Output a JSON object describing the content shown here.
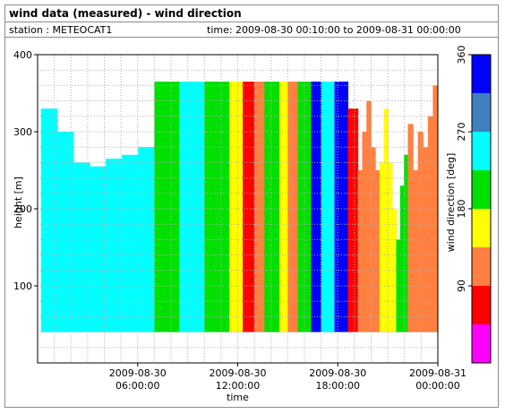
{
  "header": {
    "title": "wind data (measured) - wind direction",
    "station": "station : METEOCAT1",
    "time_range": "time: 2009-08-30 00:10:00 to 2009-08-31 00:00:00"
  },
  "chart_data": {
    "type": "heatmap",
    "title": "wind data (measured) - wind direction",
    "xlabel": "time",
    "ylabel": "height [m]",
    "colorbar_label": "wind direction [deg]",
    "xlim_hours": [
      0,
      24
    ],
    "ylim": [
      0,
      400
    ],
    "yticks": [
      100,
      200,
      300,
      400
    ],
    "xticks": [
      {
        "hour": 6,
        "line1": "2009-08-30",
        "line2": "06:00:00"
      },
      {
        "hour": 12,
        "line1": "2009-08-30",
        "line2": "12:00:00"
      },
      {
        "hour": 18,
        "line1": "2009-08-30",
        "line2": "18:00:00"
      },
      {
        "hour": 24,
        "line1": "2009-08-31",
        "line2": "00:00:00"
      }
    ],
    "colorbar": {
      "range": [
        0,
        360
      ],
      "ticks": [
        90,
        180,
        270,
        360
      ],
      "bands": [
        {
          "from": 0,
          "to": 45,
          "color": "#ff00ff"
        },
        {
          "from": 45,
          "to": 90,
          "color": "#ff0000"
        },
        {
          "from": 90,
          "to": 135,
          "color": "#ff8040"
        },
        {
          "from": 135,
          "to": 180,
          "color": "#ffff00"
        },
        {
          "from": 180,
          "to": 225,
          "color": "#00e000"
        },
        {
          "from": 225,
          "to": 270,
          "color": "#00ffff"
        },
        {
          "from": 270,
          "to": 315,
          "color": "#4080c0"
        },
        {
          "from": 315,
          "to": 360,
          "color": "#0000ff"
        }
      ]
    },
    "height_range_m": [
      40,
      365
    ],
    "segments": [
      {
        "from_hour": 0.2,
        "to_hour": 7.0,
        "direction_deg": 250,
        "top_m": [
          330,
          300,
          260,
          255,
          265,
          270,
          280
        ]
      },
      {
        "from_hour": 7.0,
        "to_hour": 8.5,
        "direction_deg": 200,
        "top_m": 365
      },
      {
        "from_hour": 8.5,
        "to_hour": 10.0,
        "direction_deg": 250,
        "top_m": 365
      },
      {
        "from_hour": 10.0,
        "to_hour": 11.5,
        "direction_deg": 200,
        "top_m": 365
      },
      {
        "from_hour": 11.5,
        "to_hour": 12.3,
        "direction_deg": 160,
        "top_m": 365
      },
      {
        "from_hour": 12.3,
        "to_hour": 13.0,
        "direction_deg": 70,
        "top_m": 365
      },
      {
        "from_hour": 13.0,
        "to_hour": 13.6,
        "direction_deg": 110,
        "top_m": 365
      },
      {
        "from_hour": 13.6,
        "to_hour": 14.5,
        "direction_deg": 200,
        "top_m": 365
      },
      {
        "from_hour": 14.5,
        "to_hour": 15.0,
        "direction_deg": 160,
        "top_m": 365
      },
      {
        "from_hour": 15.0,
        "to_hour": 15.6,
        "direction_deg": 110,
        "top_m": 365
      },
      {
        "from_hour": 15.6,
        "to_hour": 16.4,
        "direction_deg": 200,
        "top_m": 365
      },
      {
        "from_hour": 16.4,
        "to_hour": 17.0,
        "direction_deg": 340,
        "top_m": 365
      },
      {
        "from_hour": 17.0,
        "to_hour": 17.8,
        "direction_deg": 250,
        "top_m": 365
      },
      {
        "from_hour": 17.8,
        "to_hour": 18.6,
        "direction_deg": 340,
        "top_m": 365
      },
      {
        "from_hour": 18.6,
        "to_hour": 19.2,
        "direction_deg": 70,
        "top_m": 330
      },
      {
        "from_hour": 19.2,
        "to_hour": 20.5,
        "direction_deg": 110,
        "top_m": [
          250,
          300,
          340,
          280,
          250
        ]
      },
      {
        "from_hour": 20.5,
        "to_hour": 21.5,
        "direction_deg": 160,
        "top_m": [
          260,
          330,
          260,
          200
        ]
      },
      {
        "from_hour": 21.5,
        "to_hour": 22.2,
        "direction_deg": 200,
        "top_m": [
          160,
          230,
          270
        ]
      },
      {
        "from_hour": 22.2,
        "to_hour": 24.0,
        "direction_deg": 110,
        "top_m": [
          310,
          250,
          300,
          280,
          320,
          360
        ]
      }
    ]
  }
}
